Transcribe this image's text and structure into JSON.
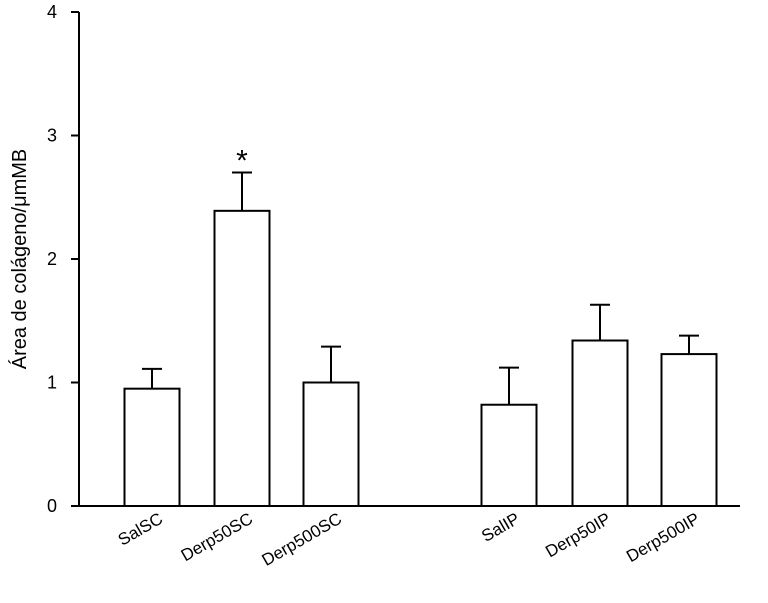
{
  "chart_data": {
    "type": "bar",
    "title": "",
    "xlabel": "",
    "ylabel": "Área de colágeno/μmMB",
    "ylim": [
      0,
      4
    ],
    "yticks": [
      0,
      1,
      2,
      3,
      4
    ],
    "grid": false,
    "legend": "none",
    "categories": [
      "SalSC",
      "Derp50SC",
      "Derp500SC",
      "SalIP",
      "Derp50IP",
      "Derp500IP"
    ],
    "values": [
      0.95,
      2.39,
      1.0,
      0.82,
      1.34,
      1.23
    ],
    "errors": [
      0.16,
      0.31,
      0.29,
      0.3,
      0.29,
      0.15
    ],
    "annotations": [
      {
        "category": "Derp50SC",
        "text": "*"
      }
    ],
    "bar_fill": "#ffffff",
    "bar_stroke": "#000000"
  }
}
